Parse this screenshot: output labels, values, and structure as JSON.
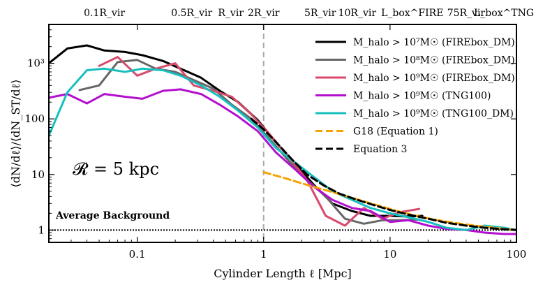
{
  "chart_data": {
    "type": "line",
    "xlabel": "Cylinder Length ℓ [Mpc]",
    "ylabel": "⟨dN/dℓ⟩/⟨dN_ST/dℓ⟩",
    "xscale": "log",
    "yscale": "log",
    "xlim": [
      0.02,
      100
    ],
    "ylim": [
      0.6,
      5000
    ],
    "x_ticks": [
      {
        "value": 0.1,
        "label": "0.1"
      },
      {
        "value": 1,
        "label": "1"
      },
      {
        "value": 10,
        "label": "10"
      },
      {
        "value": 100,
        "label": "100"
      }
    ],
    "y_ticks": [
      {
        "value": 1,
        "label": "1"
      },
      {
        "value": 10,
        "label": "10"
      },
      {
        "value": 100,
        "label": "100"
      },
      {
        "value": 1000,
        "label": "10³"
      }
    ],
    "top_ticks": [
      {
        "value": 0.055,
        "label": "0.1R_vir"
      },
      {
        "value": 0.27,
        "label": "0.5R_vir"
      },
      {
        "value": 0.55,
        "label": "R_vir"
      },
      {
        "value": 1.0,
        "label": "2R_vir"
      },
      {
        "value": 2.8,
        "label": "5R_vir"
      },
      {
        "value": 5.5,
        "label": "10R_vir"
      },
      {
        "value": 15,
        "label": "L_box^FIRE"
      },
      {
        "value": 40,
        "label": "75R_vir"
      },
      {
        "value": 100,
        "label": "L_box^TNG"
      }
    ],
    "vline": {
      "x": 1.0,
      "color": "#aaaaaa"
    },
    "hline": {
      "y": 1.0,
      "label": "Average Background"
    },
    "annotation": "𝓡 = 5 kpc",
    "series": [
      {
        "name": "M_halo > 10⁷M☉ (FIREbox_DM)",
        "color": "#000000",
        "dash": "solid",
        "x": [
          0.02,
          0.028,
          0.04,
          0.055,
          0.08,
          0.11,
          0.16,
          0.22,
          0.32,
          0.45,
          0.63,
          0.9,
          1.25,
          1.8,
          2.5,
          3.5,
          5,
          7,
          10,
          14,
          18
        ],
        "y": [
          1000,
          1850,
          2100,
          1700,
          1600,
          1400,
          1100,
          800,
          550,
          320,
          200,
          95,
          38,
          15,
          6.5,
          3,
          2.2,
          1.8,
          1.8,
          1.75,
          1.8
        ]
      },
      {
        "name": "M_halo > 10⁸M☉ (FIREbox_DM)",
        "color": "#666666",
        "dash": "solid",
        "x": [
          0.035,
          0.05,
          0.07,
          0.1,
          0.14,
          0.2,
          0.28,
          0.4,
          0.56,
          0.8,
          1.1,
          1.6,
          2.2,
          3.1,
          4.4,
          6.2,
          8.7,
          12,
          17
        ],
        "y": [
          330,
          400,
          1050,
          1150,
          800,
          700,
          500,
          350,
          180,
          100,
          45,
          17,
          8,
          4,
          1.6,
          1.3,
          1.5,
          1.5,
          1.55
        ]
      },
      {
        "name": "M_halo > 10⁹M☉ (FIREbox_DM)",
        "color": "#d94a6c",
        "dash": "solid",
        "x": [
          0.05,
          0.07,
          0.1,
          0.14,
          0.2,
          0.28,
          0.4,
          0.56,
          0.8,
          1.1,
          1.6,
          2.2,
          3.1,
          4.4,
          6.2,
          8.7,
          12,
          17
        ],
        "y": [
          900,
          1300,
          600,
          800,
          1000,
          400,
          320,
          250,
          120,
          55,
          20,
          8,
          1.8,
          1.2,
          2.5,
          1.6,
          2.1,
          2.4
        ]
      },
      {
        "name": "M_halo > 10⁹M☉ (TNG100)",
        "color": "#b30fcf",
        "dash": "solid",
        "x": [
          0.02,
          0.028,
          0.04,
          0.055,
          0.08,
          0.11,
          0.16,
          0.22,
          0.32,
          0.45,
          0.63,
          0.9,
          1.25,
          1.8,
          2.5,
          3.5,
          5,
          7,
          10,
          14,
          20,
          28,
          40,
          56,
          80,
          100
        ],
        "y": [
          240,
          280,
          190,
          280,
          250,
          230,
          320,
          340,
          280,
          180,
          110,
          60,
          25,
          12,
          6,
          3.5,
          2.5,
          2.2,
          1.4,
          1.5,
          1.2,
          1.05,
          1.0,
          0.9,
          0.85,
          0.85
        ]
      },
      {
        "name": "M_halo > 10⁹M☉ (TNG100_DM)",
        "color": "#17bfbf",
        "dash": "solid",
        "x": [
          0.02,
          0.028,
          0.04,
          0.055,
          0.08,
          0.11,
          0.16,
          0.22,
          0.32,
          0.45,
          0.63,
          0.9,
          1.25,
          1.8,
          2.5,
          3.5,
          5,
          7,
          10,
          14,
          20,
          28,
          40,
          56,
          80,
          100
        ],
        "y": [
          50,
          300,
          750,
          800,
          700,
          800,
          750,
          600,
          400,
          250,
          140,
          70,
          30,
          16,
          9,
          5,
          3.5,
          2.5,
          2.0,
          1.7,
          1.4,
          1.1,
          1.0,
          1.2,
          1.1,
          1.0
        ]
      },
      {
        "name": "G18 (Equation 1)",
        "color": "#f5a300",
        "dash": "dashed",
        "x": [
          1.0,
          1.5,
          2.2,
          3.3,
          5,
          7.5,
          11,
          16,
          24,
          36,
          55,
          80,
          100
        ],
        "y": [
          11,
          8.5,
          6.5,
          5.0,
          3.8,
          2.9,
          2.25,
          1.8,
          1.5,
          1.3,
          1.15,
          1.05,
          1.0
        ]
      },
      {
        "name": "Equation 3",
        "color": "#000000",
        "dash": "dashed",
        "x": [
          0.8,
          1.0,
          1.3,
          1.7,
          2.2,
          3.0,
          4.0,
          5.5,
          7.5,
          10,
          14,
          20,
          28,
          40,
          56,
          80,
          100
        ],
        "y": [
          100,
          65,
          35,
          18,
          10,
          6.3,
          4.5,
          3.5,
          2.8,
          2.3,
          1.9,
          1.6,
          1.35,
          1.2,
          1.1,
          1.03,
          1.0
        ]
      }
    ]
  }
}
